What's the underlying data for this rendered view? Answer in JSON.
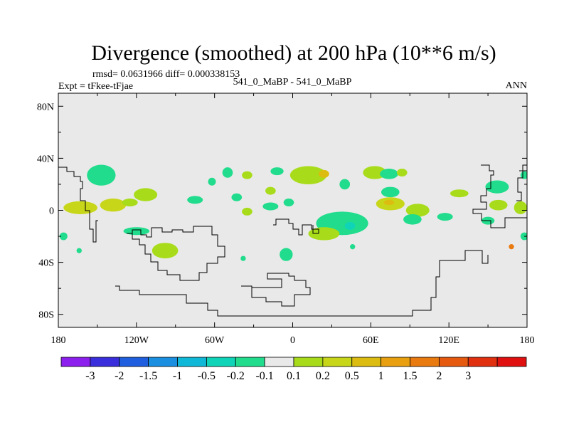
{
  "chart_data": {
    "type": "heatmap",
    "title": "Divergence (smoothed) at 200 hPa (10**6 m/s)",
    "stats_text": "rmsd= 0.0631966 diff= 0.000338153",
    "left_label": "Expt = tFkee-tFjae",
    "center_label": "541_0_MaBP - 541_0_MaBP",
    "right_label": "ANN",
    "x_ticks": [
      {
        "lon": -180,
        "label": "180"
      },
      {
        "lon": -120,
        "label": "120W"
      },
      {
        "lon": -60,
        "label": "60W"
      },
      {
        "lon": 0,
        "label": "0"
      },
      {
        "lon": 60,
        "label": "60E"
      },
      {
        "lon": 120,
        "label": "120E"
      },
      {
        "lon": 180,
        "label": "180"
      }
    ],
    "y_ticks": [
      {
        "lat": 80,
        "label": "80N"
      },
      {
        "lat": 40,
        "label": "40N"
      },
      {
        "lat": 0,
        "label": "0"
      },
      {
        "lat": -40,
        "label": "40S"
      },
      {
        "lat": -80,
        "label": "80S"
      }
    ],
    "xlim": [
      -180,
      180
    ],
    "ylim": [
      -90,
      90
    ],
    "colorbar": {
      "colors": [
        "#8c1eee",
        "#3a2edc",
        "#1e5edf",
        "#1a8fe0",
        "#10b8d8",
        "#10d4b8",
        "#20dc8c",
        "#e9e9e9",
        "#a8dc1a",
        "#c8d61a",
        "#dcbc10",
        "#e8a010",
        "#e87a10",
        "#e65a10",
        "#e03010",
        "#e01010"
      ],
      "labels": [
        "-3",
        "-2",
        "-1.5",
        "-1",
        "-0.5",
        "-0.2",
        "-0.1",
        "0.1",
        "0.2",
        "0.5",
        "1",
        "1.5",
        "2",
        "3"
      ]
    },
    "blobs": [
      {
        "lon": -147,
        "lat": 27,
        "rx": 11,
        "ry": 8,
        "value": -0.15
      },
      {
        "lon": -163,
        "lat": 2,
        "rx": 13,
        "ry": 5,
        "value": 0.25
      },
      {
        "lon": -138,
        "lat": 4,
        "rx": 10,
        "ry": 5,
        "value": 0.2
      },
      {
        "lon": -113,
        "lat": 12,
        "rx": 9,
        "ry": 5,
        "value": 0.15
      },
      {
        "lon": -125,
        "lat": 6,
        "rx": 6,
        "ry": 3,
        "value": 0.15
      },
      {
        "lon": -75,
        "lat": 8,
        "rx": 6,
        "ry": 3,
        "value": -0.15
      },
      {
        "lon": -62,
        "lat": 22,
        "rx": 3,
        "ry": 3,
        "value": -0.15
      },
      {
        "lon": -50,
        "lat": 29,
        "rx": 4,
        "ry": 4,
        "value": -0.15
      },
      {
        "lon": -43,
        "lat": 10,
        "rx": 4,
        "ry": 3,
        "value": -0.15
      },
      {
        "lon": -35,
        "lat": 27,
        "rx": 4,
        "ry": 3,
        "value": 0.15
      },
      {
        "lon": -17,
        "lat": 15,
        "rx": 4,
        "ry": 3,
        "value": 0.15
      },
      {
        "lon": -12,
        "lat": 30,
        "rx": 5,
        "ry": 3,
        "value": -0.15
      },
      {
        "lon": -17,
        "lat": 3,
        "rx": 6,
        "ry": 3,
        "value": -0.15
      },
      {
        "lon": -35,
        "lat": -1,
        "rx": 4,
        "ry": 3,
        "value": 0.15
      },
      {
        "lon": -3,
        "lat": 6,
        "rx": 4,
        "ry": 3,
        "value": -0.15
      },
      {
        "lon": 12,
        "lat": 27,
        "rx": 14,
        "ry": 7,
        "value": 0.15
      },
      {
        "lon": 24,
        "lat": 28,
        "rx": 4,
        "ry": 3,
        "value": 0.6
      },
      {
        "lon": 40,
        "lat": 20,
        "rx": 4,
        "ry": 4,
        "value": -0.15
      },
      {
        "lon": 38,
        "lat": -10,
        "rx": 20,
        "ry": 9,
        "value": -0.15
      },
      {
        "lon": 44,
        "lat": -12,
        "rx": 4,
        "ry": 3,
        "value": -0.3
      },
      {
        "lon": 24,
        "lat": -18,
        "rx": 12,
        "ry": 5,
        "value": 0.15
      },
      {
        "lon": 63,
        "lat": 29,
        "rx": 9,
        "ry": 5,
        "value": 0.15
      },
      {
        "lon": 74,
        "lat": 28,
        "rx": 7,
        "ry": 4,
        "value": -0.15
      },
      {
        "lon": 75,
        "lat": 14,
        "rx": 7,
        "ry": 4,
        "value": -0.15
      },
      {
        "lon": 84,
        "lat": 29,
        "rx": 4,
        "ry": 3,
        "value": 0.15
      },
      {
        "lon": 75,
        "lat": 5,
        "rx": 11,
        "ry": 5,
        "value": 0.2
      },
      {
        "lon": 74,
        "lat": 6,
        "rx": 4,
        "ry": 2,
        "value": 0.6
      },
      {
        "lon": 96,
        "lat": 0,
        "rx": 9,
        "ry": 5,
        "value": 0.15
      },
      {
        "lon": 92,
        "lat": -7,
        "rx": 7,
        "ry": 4,
        "value": -0.15
      },
      {
        "lon": 117,
        "lat": -5,
        "rx": 6,
        "ry": 3,
        "value": -0.15
      },
      {
        "lon": 128,
        "lat": 13,
        "rx": 7,
        "ry": 3,
        "value": 0.15
      },
      {
        "lon": 157,
        "lat": 18,
        "rx": 9,
        "ry": 5,
        "value": -0.15
      },
      {
        "lon": 158,
        "lat": 4,
        "rx": 7,
        "ry": 4,
        "value": 0.15
      },
      {
        "lon": 175,
        "lat": 2,
        "rx": 5,
        "ry": 5,
        "value": 0.15
      },
      {
        "lon": 150,
        "lat": -8,
        "rx": 5,
        "ry": 3,
        "value": -0.15
      },
      {
        "lon": 178,
        "lat": 27,
        "rx": 3,
        "ry": 3,
        "value": -0.15
      },
      {
        "lon": -5,
        "lat": -34,
        "rx": 5,
        "ry": 5,
        "value": -0.15
      },
      {
        "lon": -120,
        "lat": -16,
        "rx": 10,
        "ry": 3,
        "value": -0.15
      },
      {
        "lon": -98,
        "lat": -31,
        "rx": 10,
        "ry": 6,
        "value": 0.15
      },
      {
        "lon": -176,
        "lat": -20,
        "rx": 3,
        "ry": 3,
        "value": -0.15
      },
      {
        "lon": -164,
        "lat": -31,
        "rx": 2,
        "ry": 2,
        "value": -0.15
      },
      {
        "lon": -38,
        "lat": -37,
        "rx": 2,
        "ry": 2,
        "value": -0.15
      },
      {
        "lon": 46,
        "lat": -28,
        "rx": 2,
        "ry": 2,
        "value": -0.15
      },
      {
        "lon": 178,
        "lat": -20,
        "rx": 3,
        "ry": 3,
        "value": -0.15
      },
      {
        "lon": 168,
        "lat": -28,
        "rx": 2,
        "ry": 2,
        "value": 1.5
      }
    ]
  }
}
